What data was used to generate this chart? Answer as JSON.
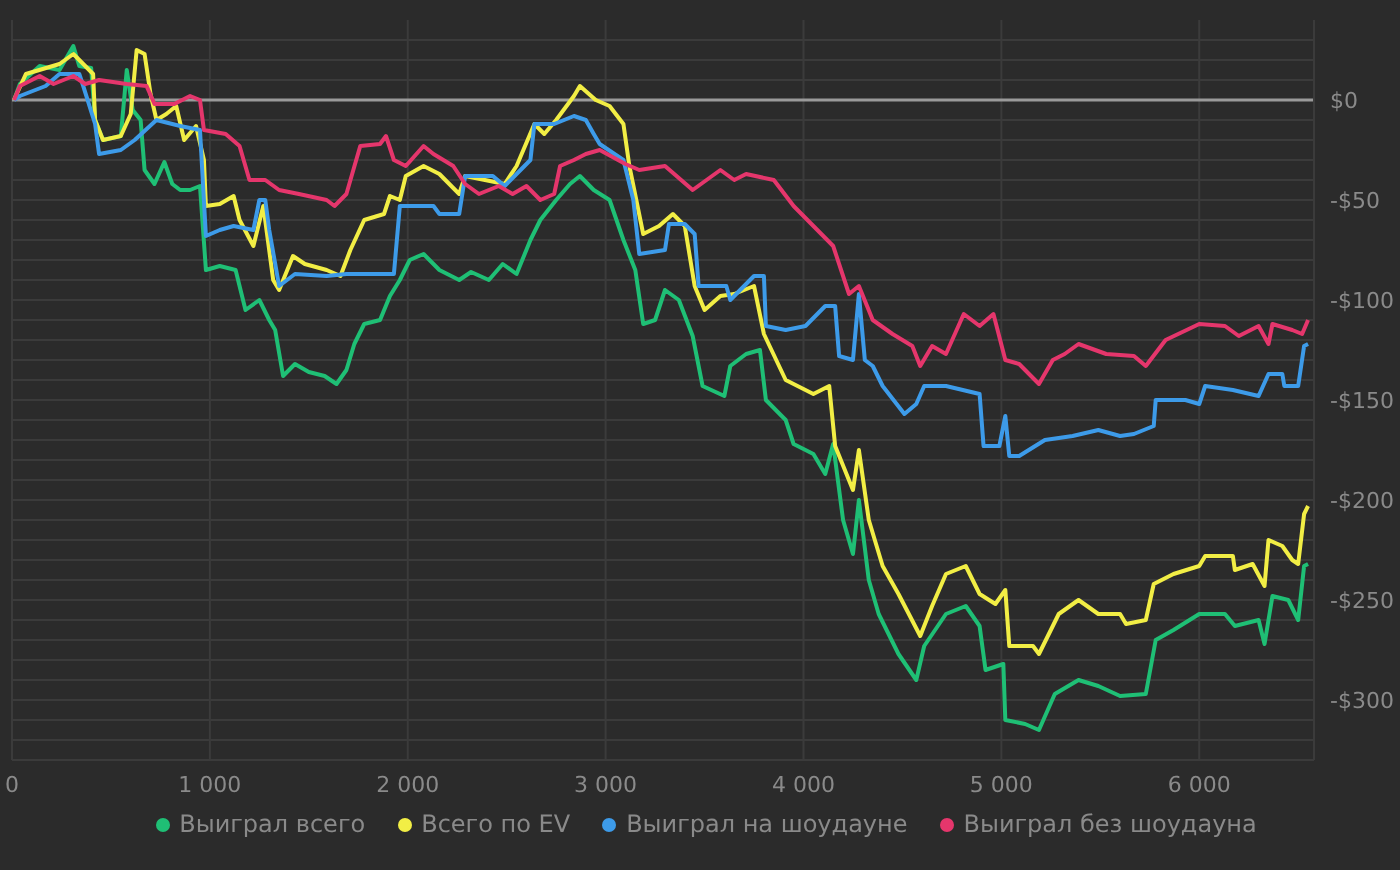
{
  "chart_data": {
    "type": "line",
    "xlim": [
      0,
      6580
    ],
    "ylim": [
      -330,
      40
    ],
    "xticks": [
      0,
      {
        "value": 1000,
        "label": "1 000"
      },
      {
        "value": 2000,
        "label": "2 000"
      },
      {
        "value": 3000,
        "label": "3 000"
      },
      {
        "value": 4000,
        "label": "4 000"
      },
      {
        "value": 5000,
        "label": "5 000"
      },
      {
        "value": 6000,
        "label": "6 000"
      }
    ],
    "yticks": [
      {
        "value": 30,
        "label": null
      },
      {
        "value": 20,
        "label": null
      },
      {
        "value": 10,
        "label": null
      },
      {
        "value": 0,
        "label": "$0"
      },
      {
        "value": -10,
        "label": null
      },
      {
        "value": -20,
        "label": null
      },
      {
        "value": -30,
        "label": null
      },
      {
        "value": -40,
        "label": null
      },
      {
        "value": -50,
        "label": "-$50"
      },
      {
        "value": -60,
        "label": null
      },
      {
        "value": -70,
        "label": null
      },
      {
        "value": -80,
        "label": null
      },
      {
        "value": -90,
        "label": null
      },
      {
        "value": -100,
        "label": "-$100"
      },
      {
        "value": -110,
        "label": null
      },
      {
        "value": -120,
        "label": null
      },
      {
        "value": -130,
        "label": null
      },
      {
        "value": -140,
        "label": null
      },
      {
        "value": -150,
        "label": "-$150"
      },
      {
        "value": -160,
        "label": null
      },
      {
        "value": -170,
        "label": null
      },
      {
        "value": -180,
        "label": null
      },
      {
        "value": -190,
        "label": null
      },
      {
        "value": -200,
        "label": "-$200"
      },
      {
        "value": -210,
        "label": null
      },
      {
        "value": -220,
        "label": null
      },
      {
        "value": -230,
        "label": null
      },
      {
        "value": -240,
        "label": null
      },
      {
        "value": -250,
        "label": "-$250"
      },
      {
        "value": -260,
        "label": null
      },
      {
        "value": -270,
        "label": null
      },
      {
        "value": -280,
        "label": null
      },
      {
        "value": -290,
        "label": null
      },
      {
        "value": -300,
        "label": "-$300"
      },
      {
        "value": -310,
        "label": null
      },
      {
        "value": -320,
        "label": null
      }
    ],
    "grid": true,
    "legend": "bottom",
    "line_style": "solid",
    "ref_lines": [
      {
        "axis": "y",
        "value": 0,
        "color": "#9a9a9a"
      }
    ],
    "series": [
      {
        "name": "Выиграл всего",
        "color": "#1fbf75",
        "x": [
          10,
          40,
          140,
          240,
          310,
          340,
          400,
          420,
          460,
          550,
          580,
          610,
          650,
          670,
          720,
          770,
          810,
          850,
          900,
          950,
          980,
          1050,
          1130,
          1180,
          1250,
          1300,
          1330,
          1370,
          1430,
          1500,
          1580,
          1640,
          1690,
          1730,
          1780,
          1860,
          1910,
          1960,
          2010,
          2080,
          2160,
          2260,
          2320,
          2410,
          2480,
          2550,
          2620,
          2670,
          2750,
          2820,
          2870,
          2940,
          3020,
          3090,
          3150,
          3190,
          3250,
          3300,
          3370,
          3440,
          3490,
          3600,
          3630,
          3710,
          3780,
          3810,
          3910,
          3950,
          4050,
          4110,
          4150,
          4200,
          4250,
          4280,
          4330,
          4380,
          4480,
          4570,
          4610,
          4720,
          4820,
          4890,
          4920,
          5010,
          5020,
          5120,
          5190,
          5270,
          5390,
          5490,
          5600,
          5730,
          5780,
          5870,
          6000,
          6130,
          6180,
          6300,
          6330,
          6370,
          6450,
          6500,
          6530,
          6550
        ],
        "values": [
          0,
          8,
          17,
          15,
          27,
          17,
          16,
          -10,
          -20,
          -18,
          15,
          -5,
          -10,
          -35,
          -42,
          -31,
          -42,
          -45,
          -45,
          -43,
          -85,
          -83,
          -85,
          -105,
          -100,
          -110,
          -115,
          -138,
          -132,
          -136,
          -138,
          -142,
          -135,
          -122,
          -112,
          -110,
          -98,
          -90,
          -80,
          -77,
          -85,
          -90,
          -86,
          -90,
          -82,
          -87,
          -70,
          -60,
          -50,
          -42,
          -38,
          -45,
          -50,
          -70,
          -85,
          -112,
          -110,
          -95,
          -100,
          -118,
          -143,
          -148,
          -133,
          -127,
          -125,
          -150,
          -160,
          -172,
          -177,
          -187,
          -172,
          -210,
          -227,
          -200,
          -240,
          -257,
          -277,
          -290,
          -273,
          -257,
          -253,
          -263,
          -285,
          -282,
          -310,
          -312,
          -315,
          -297,
          -290,
          -293,
          -298,
          -297,
          -270,
          -265,
          -257,
          -257,
          -263,
          -260,
          -272,
          -248,
          -250,
          -260,
          -233,
          -232
        ]
      },
      {
        "name": "Всего по EV",
        "color": "#f2ee45",
        "x": [
          10,
          70,
          240,
          310,
          410,
          420,
          460,
          550,
          600,
          630,
          670,
          700,
          730,
          780,
          830,
          870,
          930,
          970,
          980,
          1050,
          1120,
          1150,
          1220,
          1270,
          1320,
          1350,
          1420,
          1480,
          1590,
          1660,
          1710,
          1780,
          1880,
          1910,
          1960,
          1990,
          2080,
          2160,
          2260,
          2290,
          2390,
          2490,
          2550,
          2640,
          2690,
          2750,
          2840,
          2870,
          2950,
          3020,
          3090,
          3120,
          3190,
          3270,
          3340,
          3400,
          3450,
          3500,
          3580,
          3650,
          3750,
          3800,
          3910,
          4050,
          4130,
          4160,
          4250,
          4280,
          4330,
          4400,
          4480,
          4590,
          4650,
          4720,
          4820,
          4890,
          4970,
          5020,
          5040,
          5160,
          5190,
          5290,
          5390,
          5490,
          5600,
          5630,
          5730,
          5770,
          5870,
          6000,
          6030,
          6170,
          6180,
          6270,
          6330,
          6350,
          6420,
          6470,
          6500,
          6530,
          6550
        ],
        "values": [
          0,
          13,
          18,
          23,
          13,
          -10,
          -20,
          -18,
          -7,
          25,
          23,
          3,
          -10,
          -7,
          -3,
          -20,
          -13,
          -30,
          -53,
          -52,
          -48,
          -60,
          -73,
          -53,
          -90,
          -95,
          -78,
          -82,
          -85,
          -88,
          -75,
          -60,
          -57,
          -48,
          -50,
          -38,
          -33,
          -37,
          -47,
          -38,
          -40,
          -42,
          -33,
          -12,
          -17,
          -10,
          2,
          7,
          0,
          -3,
          -12,
          -33,
          -67,
          -63,
          -57,
          -63,
          -93,
          -105,
          -98,
          -97,
          -93,
          -117,
          -140,
          -147,
          -143,
          -173,
          -195,
          -175,
          -210,
          -233,
          -247,
          -268,
          -253,
          -237,
          -233,
          -247,
          -252,
          -245,
          -273,
          -273,
          -277,
          -257,
          -250,
          -257,
          -257,
          -262,
          -260,
          -242,
          -237,
          -233,
          -228,
          -228,
          -235,
          -232,
          -243,
          -220,
          -223,
          -230,
          -232,
          -207,
          -203
        ]
      },
      {
        "name": "Выиграл на шоудауне",
        "color": "#3d9be9",
        "x": [
          10,
          40,
          170,
          240,
          340,
          360,
          420,
          440,
          550,
          620,
          730,
          850,
          950,
          980,
          1050,
          1120,
          1220,
          1250,
          1280,
          1300,
          1350,
          1430,
          1590,
          1690,
          1930,
          1960,
          2130,
          2160,
          2260,
          2290,
          2430,
          2490,
          2570,
          2620,
          2640,
          2740,
          2840,
          2900,
          2940,
          2970,
          3090,
          3140,
          3170,
          3300,
          3320,
          3400,
          3450,
          3470,
          3610,
          3630,
          3750,
          3800,
          3810,
          3910,
          4010,
          4110,
          4160,
          4180,
          4250,
          4280,
          4310,
          4350,
          4400,
          4510,
          4570,
          4610,
          4720,
          4890,
          4910,
          4990,
          5020,
          5040,
          5090,
          5220,
          5360,
          5490,
          5600,
          5670,
          5770,
          5780,
          5930,
          6000,
          6030,
          6170,
          6300,
          6350,
          6420,
          6430,
          6500,
          6530,
          6550
        ],
        "values": [
          0,
          2,
          7,
          13,
          13,
          7,
          -12,
          -27,
          -25,
          -20,
          -10,
          -13,
          -15,
          -68,
          -65,
          -63,
          -65,
          -50,
          -50,
          -65,
          -93,
          -87,
          -88,
          -87,
          -87,
          -53,
          -53,
          -57,
          -57,
          -38,
          -38,
          -43,
          -35,
          -30,
          -12,
          -12,
          -8,
          -10,
          -17,
          -22,
          -30,
          -50,
          -77,
          -75,
          -62,
          -62,
          -67,
          -93,
          -93,
          -100,
          -88,
          -88,
          -113,
          -115,
          -113,
          -103,
          -103,
          -128,
          -130,
          -97,
          -130,
          -133,
          -143,
          -157,
          -152,
          -143,
          -143,
          -147,
          -173,
          -173,
          -158,
          -178,
          -178,
          -170,
          -168,
          -165,
          -168,
          -167,
          -163,
          -150,
          -150,
          -152,
          -143,
          -145,
          -148,
          -137,
          -137,
          -143,
          -143,
          -123,
          -122
        ]
      },
      {
        "name": "Выиграл без шоудауна",
        "color": "#e5366c",
        "x": [
          10,
          40,
          140,
          210,
          310,
          370,
          440,
          580,
          680,
          720,
          820,
          900,
          950,
          970,
          1080,
          1150,
          1200,
          1280,
          1350,
          1450,
          1590,
          1630,
          1690,
          1760,
          1860,
          1890,
          1930,
          1990,
          2080,
          2130,
          2230,
          2290,
          2360,
          2460,
          2530,
          2600,
          2670,
          2740,
          2770,
          2840,
          2900,
          2970,
          3100,
          3170,
          3300,
          3440,
          3580,
          3650,
          3710,
          3850,
          3950,
          4050,
          4150,
          4230,
          4280,
          4350,
          4450,
          4550,
          4590,
          4650,
          4720,
          4810,
          4890,
          4960,
          5020,
          5090,
          5190,
          5260,
          5320,
          5390,
          5530,
          5670,
          5730,
          5830,
          6000,
          6130,
          6200,
          6300,
          6350,
          6370,
          6470,
          6520,
          6550
        ],
        "values": [
          0,
          7,
          12,
          8,
          12,
          8,
          10,
          8,
          7,
          -2,
          -2,
          2,
          0,
          -15,
          -17,
          -23,
          -40,
          -40,
          -45,
          -47,
          -50,
          -53,
          -47,
          -23,
          -22,
          -18,
          -30,
          -33,
          -23,
          -27,
          -33,
          -42,
          -47,
          -43,
          -47,
          -43,
          -50,
          -47,
          -33,
          -30,
          -27,
          -25,
          -32,
          -35,
          -33,
          -45,
          -35,
          -40,
          -37,
          -40,
          -53,
          -63,
          -73,
          -97,
          -93,
          -110,
          -117,
          -123,
          -133,
          -123,
          -127,
          -107,
          -113,
          -107,
          -130,
          -132,
          -142,
          -130,
          -127,
          -122,
          -127,
          -128,
          -133,
          -120,
          -112,
          -113,
          -118,
          -113,
          -122,
          -112,
          -115,
          -117,
          -110
        ]
      }
    ]
  }
}
